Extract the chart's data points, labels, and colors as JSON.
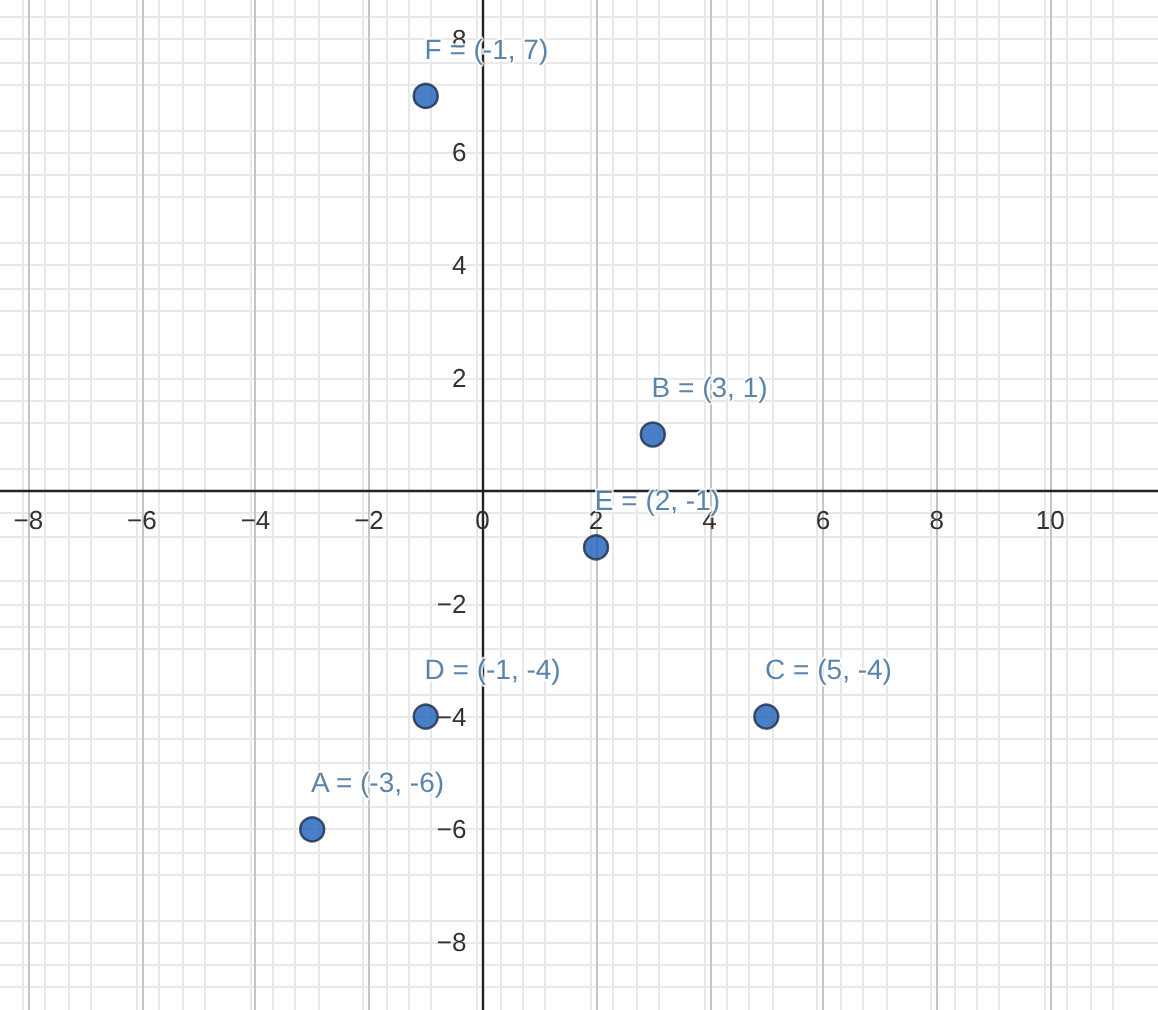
{
  "chart_data": {
    "type": "scatter",
    "series": [
      {
        "color": "#1c5fb8",
        "x": [
          -3,
          3,
          5,
          -1,
          2,
          -1
        ],
        "values": [
          -6,
          1,
          -4,
          -4,
          -1,
          7
        ],
        "value_labels": [
          "A = (-3, -6)",
          "B = (3, 1)",
          "C = (5, -4)",
          "D = (-1, -4)",
          "E = (2, -1)",
          "F = (-1, 7)"
        ]
      }
    ],
    "marker": "circle",
    "xlim": [
      -8.5,
      11.9
    ],
    "ylim": [
      -9.2,
      8.7
    ],
    "xticks": [
      -8,
      -6,
      -4,
      -2,
      0,
      2,
      4,
      6,
      8,
      10
    ],
    "yticks": [
      -8,
      -6,
      -4,
      -2,
      2,
      4,
      6,
      8
    ],
    "grid": true
  }
}
